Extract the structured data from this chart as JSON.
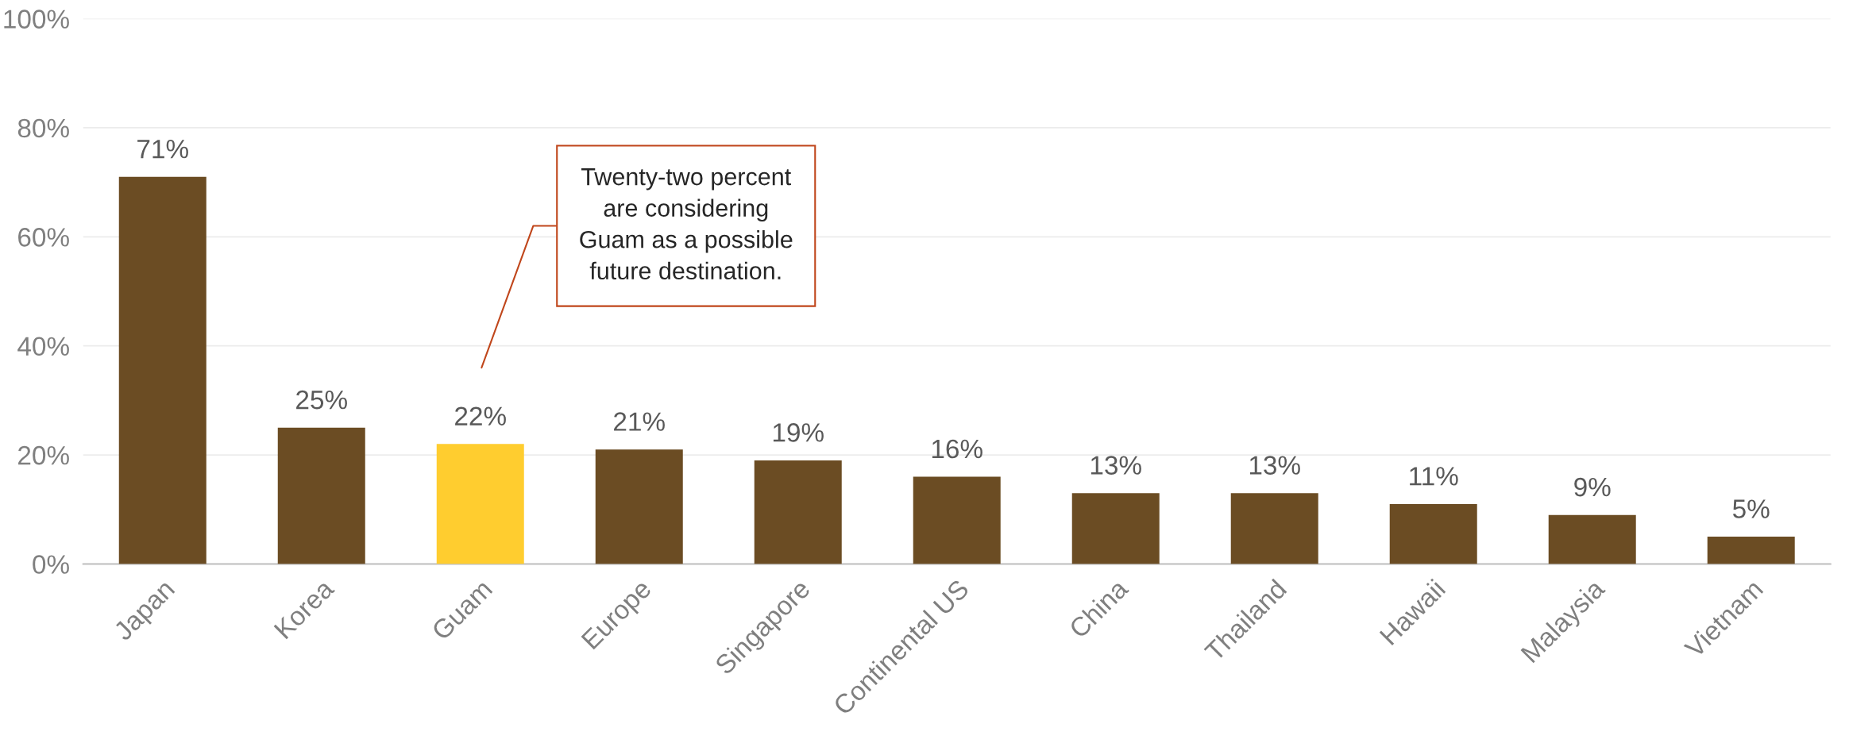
{
  "chart_data": {
    "type": "bar",
    "categories": [
      "Japan",
      "Korea",
      "Guam",
      "Europe",
      "Singapore",
      "Continental US",
      "China",
      "Thailand",
      "Hawaii",
      "Malaysia",
      "Vietnam"
    ],
    "values": [
      71,
      25,
      22,
      21,
      19,
      16,
      13,
      13,
      11,
      9,
      5
    ],
    "colors": [
      "#6b4c23",
      "#6b4c23",
      "#ffcd2f",
      "#6b4c23",
      "#6b4c23",
      "#6b4c23",
      "#6b4c23",
      "#6b4c23",
      "#6b4c23",
      "#6b4c23",
      "#6b4c23"
    ],
    "ylim": [
      0,
      100
    ],
    "yticks": [
      {
        "value": 0,
        "label": "0%"
      },
      {
        "value": 20,
        "label": "20%"
      },
      {
        "value": 40,
        "label": "40%"
      },
      {
        "value": 60,
        "label": "60%"
      },
      {
        "value": 80,
        "label": "80%"
      },
      {
        "value": 100,
        "label": "100%"
      }
    ],
    "value_labels": [
      "71%",
      "25%",
      "22%",
      "21%",
      "19%",
      "16%",
      "13%",
      "13%",
      "11%",
      "9%",
      "5%"
    ],
    "grid": "y",
    "annotations": [
      "Twenty-two percent\nare considering\nGuam as a possible\nfuture destination."
    ]
  }
}
